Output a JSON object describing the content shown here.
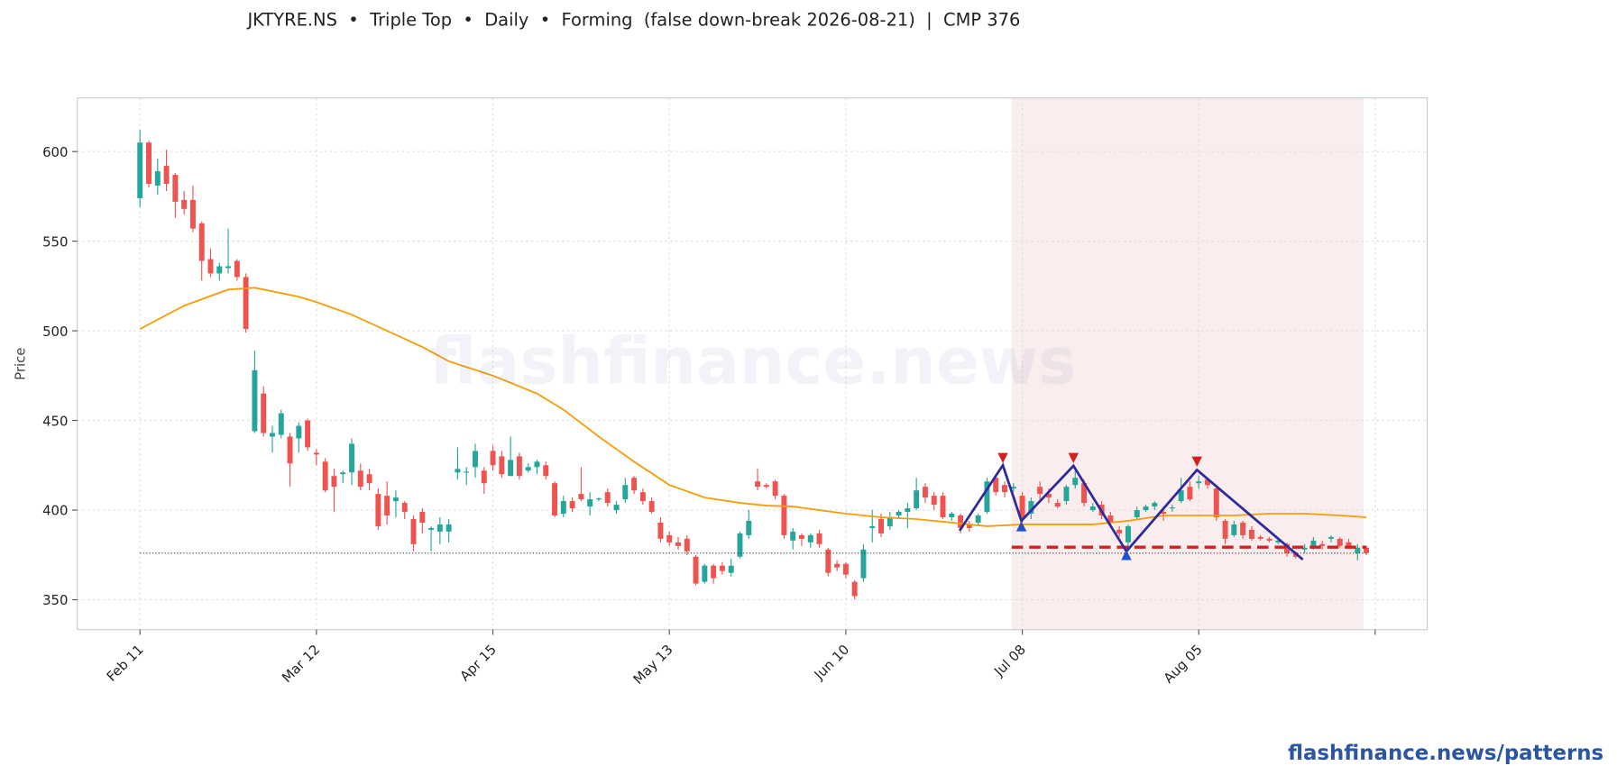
{
  "chart_data": {
    "type": "candlestick",
    "title": "JKTYRE.NS  •  Triple Top  •  Daily  •  Forming  (false down-break 2026-08-21)  |  CMP 376",
    "y_label": "Price",
    "watermark": "flashfinance.news",
    "footer": "flashfinance.news/patterns",
    "up_color": "#26a69a",
    "down_color": "#ef5350",
    "grid": true,
    "xlim": [
      -7.1,
      145.9
    ],
    "ylim": [
      333.3,
      629.9
    ],
    "yticks": [
      350,
      400,
      450,
      500,
      550,
      600
    ],
    "xticks": [
      {
        "value": 0,
        "label": "Feb 11"
      },
      {
        "value": 20,
        "label": "Mar 12"
      },
      {
        "value": 40,
        "label": "Apr 15"
      },
      {
        "value": 60,
        "label": "May 13"
      },
      {
        "value": 80,
        "label": "Jun 10"
      },
      {
        "value": 100,
        "label": "Jul 08"
      },
      {
        "value": 120,
        "label": "Aug 05"
      },
      {
        "value": 140,
        "label": null
      }
    ],
    "candles": [
      [
        574,
        612,
        569,
        605
      ],
      [
        605,
        606,
        580,
        582
      ],
      [
        581,
        596,
        576,
        589
      ],
      [
        592,
        601,
        578,
        582
      ],
      [
        587,
        588,
        563,
        572
      ],
      [
        573,
        578,
        565,
        568
      ],
      [
        573,
        581,
        555,
        557
      ],
      [
        560,
        561,
        528,
        539
      ],
      [
        540,
        546,
        530,
        532
      ],
      [
        532,
        538,
        528,
        536
      ],
      [
        535,
        557,
        532,
        536
      ],
      [
        539,
        540,
        528,
        530
      ],
      [
        530,
        532,
        499,
        501
      ],
      [
        444,
        489,
        443,
        478
      ],
      [
        465,
        469,
        441,
        443
      ],
      [
        441,
        447,
        432,
        443
      ],
      [
        442,
        456,
        440,
        454
      ],
      [
        441,
        443,
        413,
        426
      ],
      [
        440,
        449,
        432,
        447
      ],
      [
        450,
        451,
        433,
        435
      ],
      [
        432,
        434,
        425,
        431
      ],
      [
        427,
        429,
        410,
        411
      ],
      [
        419,
        423,
        399,
        413
      ],
      [
        420,
        422,
        415,
        421
      ],
      [
        421,
        440,
        414,
        437
      ],
      [
        422,
        426,
        411,
        413
      ],
      [
        420,
        423,
        411,
        415
      ],
      [
        409,
        412,
        389,
        391
      ],
      [
        408,
        416,
        392,
        397
      ],
      [
        405,
        411,
        396,
        407
      ],
      [
        404,
        405,
        395,
        399
      ],
      [
        395,
        397,
        377,
        381
      ],
      [
        399,
        401,
        387,
        393
      ],
      [
        389,
        391,
        377,
        390
      ],
      [
        388,
        396,
        381,
        392
      ],
      [
        388,
        395,
        382,
        392
      ],
      [
        421,
        435,
        417,
        423
      ],
      [
        421,
        424,
        414,
        421.5
      ],
      [
        424,
        437,
        418,
        433
      ],
      [
        422,
        424,
        409,
        415
      ],
      [
        433,
        436,
        422,
        425
      ],
      [
        430,
        433,
        418,
        420
      ],
      [
        419,
        441,
        419,
        428
      ],
      [
        430,
        432,
        417,
        419
      ],
      [
        422,
        426,
        421,
        424
      ],
      [
        424,
        428,
        420,
        427
      ],
      [
        425,
        427,
        417,
        419
      ],
      [
        415,
        416,
        396,
        397
      ],
      [
        398,
        408,
        396,
        405
      ],
      [
        405,
        407,
        399,
        401
      ],
      [
        409,
        424,
        405,
        406
      ],
      [
        402,
        410,
        397,
        406
      ],
      [
        406,
        407,
        405,
        406.5
      ],
      [
        410,
        412,
        402,
        404
      ],
      [
        400,
        405,
        398,
        403
      ],
      [
        406,
        418,
        404,
        414
      ],
      [
        418,
        419,
        409,
        411
      ],
      [
        410,
        412,
        403,
        405
      ],
      [
        405,
        407,
        398,
        399
      ],
      [
        393,
        396,
        382,
        384
      ],
      [
        386,
        388,
        380,
        382
      ],
      [
        382,
        385,
        378,
        380
      ],
      [
        384,
        386,
        375,
        377
      ],
      [
        374,
        375,
        358,
        359
      ],
      [
        360,
        370,
        359,
        369
      ],
      [
        369,
        370,
        359,
        362
      ],
      [
        369,
        371,
        364,
        366
      ],
      [
        365,
        373,
        363,
        369
      ],
      [
        374,
        388,
        373,
        387
      ],
      [
        386,
        400,
        384,
        394
      ],
      [
        416,
        423,
        411,
        413
      ],
      [
        414,
        415,
        412,
        413
      ],
      [
        416,
        417,
        406,
        408
      ],
      [
        408,
        409,
        384,
        386
      ],
      [
        383,
        390,
        378,
        388
      ],
      [
        386,
        387,
        380,
        384
      ],
      [
        382,
        387,
        379,
        386
      ],
      [
        387,
        389,
        379,
        381
      ],
      [
        378,
        379,
        363,
        365
      ],
      [
        370,
        372,
        366,
        368
      ],
      [
        370,
        371,
        362,
        364
      ],
      [
        360,
        361,
        350,
        352
      ],
      [
        362,
        381,
        360,
        378
      ],
      [
        390,
        400,
        382,
        391
      ],
      [
        395,
        398,
        385,
        387
      ],
      [
        391,
        399,
        389,
        396
      ],
      [
        397,
        400,
        395,
        399
      ],
      [
        399,
        404,
        390,
        401
      ],
      [
        401,
        418,
        400,
        411
      ],
      [
        413,
        415,
        404,
        407
      ],
      [
        408,
        410,
        400,
        403
      ],
      [
        408,
        410,
        395,
        396
      ],
      [
        396,
        399,
        394,
        398
      ],
      [
        397,
        398,
        387,
        390
      ],
      [
        392,
        394,
        388,
        390
      ],
      [
        393,
        398,
        391,
        397
      ],
      [
        399,
        418,
        398,
        416
      ],
      [
        418,
        420,
        408,
        410
      ],
      [
        414,
        416,
        407,
        410
      ],
      [
        412,
        415,
        410,
        413
      ],
      [
        408,
        410,
        393,
        396
      ],
      [
        398,
        407,
        395,
        405
      ],
      [
        413,
        416,
        406,
        409
      ],
      [
        409,
        412,
        404,
        407
      ],
      [
        404,
        406,
        401,
        402
      ],
      [
        405,
        414,
        403,
        413
      ],
      [
        414,
        422,
        412,
        418
      ],
      [
        415,
        417,
        402,
        404
      ],
      [
        400,
        404,
        399,
        402
      ],
      [
        403,
        405,
        395,
        397
      ],
      [
        397,
        399,
        391,
        393
      ],
      [
        389,
        391,
        385,
        387
      ],
      [
        382,
        392,
        378,
        391
      ],
      [
        396,
        402,
        395,
        400
      ],
      [
        400,
        403,
        399,
        402
      ],
      [
        402,
        405,
        400,
        404
      ],
      [
        399,
        402,
        394,
        398
      ],
      [
        401,
        403,
        399,
        401.5
      ],
      [
        405,
        418,
        404,
        411
      ],
      [
        413,
        416,
        405,
        406
      ],
      [
        415,
        419,
        412,
        416
      ],
      [
        417,
        418,
        412,
        414
      ],
      [
        412,
        414,
        394,
        396
      ],
      [
        394,
        395,
        381,
        384
      ],
      [
        386,
        394,
        385,
        392
      ],
      [
        393,
        394,
        384,
        386
      ],
      [
        389,
        391,
        383,
        384
      ],
      [
        385,
        386,
        383,
        384
      ],
      [
        384,
        385,
        382,
        383
      ],
      [
        382,
        384,
        381,
        383
      ],
      [
        381,
        382,
        374,
        376
      ],
      [
        376,
        377,
        373,
        374
      ],
      [
        378,
        381,
        376,
        379
      ],
      [
        380,
        385,
        378,
        383
      ],
      [
        381,
        383,
        378,
        380
      ],
      [
        384,
        386,
        382,
        385
      ],
      [
        384,
        385,
        379,
        380
      ],
      [
        382,
        384,
        379,
        380
      ],
      [
        376,
        381,
        372,
        379
      ],
      [
        379,
        380,
        375,
        376
      ]
    ],
    "ma": {
      "color": "#f59e0b",
      "x": [
        0,
        5,
        10,
        13,
        15,
        18,
        20,
        24,
        28,
        32,
        35,
        40,
        45,
        48,
        52,
        56,
        60,
        64,
        68,
        71,
        74,
        77,
        80,
        84,
        88,
        92,
        96,
        100,
        104,
        108,
        112,
        116,
        120,
        124,
        128,
        132,
        136,
        139
      ],
      "values": [
        501,
        514,
        523,
        524,
        522,
        519,
        516,
        509,
        500,
        491,
        483,
        475,
        465,
        456,
        441,
        427,
        414,
        407,
        404,
        402.5,
        402,
        400,
        398,
        396,
        395,
        393,
        391,
        392,
        392,
        392,
        394,
        397,
        397,
        397,
        398,
        398,
        397,
        396
      ]
    },
    "pattern": {
      "color": "#2e2a9e",
      "x": [
        92.9,
        97.8,
        99.9,
        105.8,
        111.8,
        119.8,
        131.8
      ],
      "values": [
        388.5,
        425,
        394,
        424.7,
        377,
        422.4,
        372.4
      ]
    },
    "peaks": {
      "color": "#d21f1f",
      "x": [
        97.8,
        105.8,
        119.8
      ],
      "values": [
        429,
        429,
        427
      ]
    },
    "troughs": {
      "color": "#1f4fd2",
      "x": [
        99.9,
        111.8
      ],
      "values": [
        391,
        375
      ]
    },
    "neckline": {
      "color": "#d21f1f",
      "value": 379.3,
      "x": [
        98.8,
        139
      ]
    },
    "cmp_line": {
      "value": 376,
      "x": [
        0,
        139
      ]
    },
    "zone": {
      "color": "#f3d6d6",
      "x": [
        98.8,
        138.7
      ]
    }
  }
}
